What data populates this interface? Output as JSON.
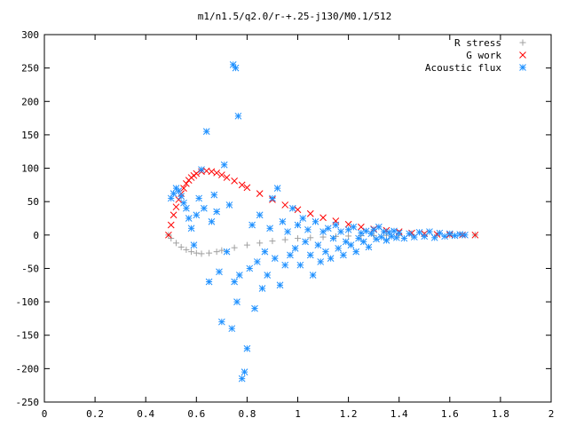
{
  "chart_data": {
    "type": "scatter",
    "title": "m1/n1.5/q2.0/r-+.25-j130/M0.1/512",
    "xlim": [
      0,
      2
    ],
    "ylim": [
      -250,
      300
    ],
    "xticks": [
      "0",
      "0.2",
      "0.4",
      "0.6",
      "0.8",
      "1",
      "1.2",
      "1.4",
      "1.6",
      "1.8",
      "2"
    ],
    "yticks": [
      "-250",
      "-200",
      "-150",
      "-100",
      "-50",
      "0",
      "50",
      "100",
      "150",
      "200",
      "250",
      "300"
    ],
    "legend_position": "top-right",
    "series": [
      {
        "name": "R stress",
        "marker": "plus",
        "color": "#a0a0a0",
        "x": [
          0.49,
          0.5,
          0.52,
          0.54,
          0.56,
          0.58,
          0.6,
          0.62,
          0.65,
          0.68,
          0.7,
          0.75,
          0.8,
          0.85,
          0.9,
          0.95,
          1.0,
          1.05,
          1.1,
          1.15,
          1.2,
          1.25,
          1.3,
          1.35,
          1.4,
          1.45,
          1.5,
          1.55,
          1.6,
          1.65,
          1.7
        ],
        "y": [
          0,
          -5,
          -12,
          -18,
          -22,
          -25,
          -27,
          -28,
          -27,
          -25,
          -23,
          -19,
          -15,
          -12,
          -9,
          -7,
          -5,
          -4,
          -3,
          -2,
          -1.5,
          -1,
          -0.7,
          -0.5,
          -0.3,
          -0.2,
          -0.1,
          0,
          0,
          0,
          0
        ]
      },
      {
        "name": "G work",
        "marker": "cross",
        "color": "#ff0000",
        "x": [
          0.49,
          0.5,
          0.51,
          0.52,
          0.53,
          0.54,
          0.55,
          0.56,
          0.57,
          0.58,
          0.59,
          0.6,
          0.62,
          0.64,
          0.66,
          0.68,
          0.7,
          0.72,
          0.75,
          0.78,
          0.8,
          0.85,
          0.9,
          0.95,
          1.0,
          1.05,
          1.1,
          1.15,
          1.2,
          1.25,
          1.3,
          1.35,
          1.4,
          1.45,
          1.5,
          1.55,
          1.6,
          1.65,
          1.7
        ],
        "y": [
          0,
          15,
          30,
          42,
          53,
          62,
          70,
          77,
          82,
          86,
          89,
          92,
          95,
          96,
          95,
          93,
          90,
          86,
          81,
          75,
          71,
          62,
          53,
          45,
          38,
          32,
          26,
          21,
          16,
          12,
          9,
          7,
          5,
          3,
          2,
          1,
          0.5,
          0.2,
          0
        ]
      },
      {
        "name": "Acoustic flux",
        "marker": "star",
        "color": "#1e90ff",
        "x": [
          0.5,
          0.51,
          0.52,
          0.53,
          0.54,
          0.55,
          0.56,
          0.57,
          0.58,
          0.59,
          0.6,
          0.61,
          0.62,
          0.63,
          0.64,
          0.65,
          0.66,
          0.67,
          0.68,
          0.69,
          0.7,
          0.71,
          0.72,
          0.73,
          0.74,
          0.745,
          0.75,
          0.755,
          0.76,
          0.765,
          0.77,
          0.78,
          0.79,
          0.8,
          0.81,
          0.82,
          0.83,
          0.84,
          0.85,
          0.86,
          0.87,
          0.88,
          0.89,
          0.9,
          0.91,
          0.92,
          0.93,
          0.94,
          0.95,
          0.96,
          0.97,
          0.98,
          0.99,
          1.0,
          1.01,
          1.02,
          1.03,
          1.04,
          1.05,
          1.06,
          1.07,
          1.08,
          1.09,
          1.1,
          1.11,
          1.12,
          1.13,
          1.14,
          1.15,
          1.16,
          1.17,
          1.18,
          1.19,
          1.2,
          1.21,
          1.22,
          1.23,
          1.24,
          1.25,
          1.26,
          1.27,
          1.28,
          1.29,
          1.3,
          1.31,
          1.32,
          1.33,
          1.34,
          1.35,
          1.36,
          1.37,
          1.38,
          1.39,
          1.4,
          1.42,
          1.44,
          1.46,
          1.48,
          1.5,
          1.52,
          1.54,
          1.56,
          1.58,
          1.6,
          1.62,
          1.64,
          1.66
        ],
        "y": [
          55,
          62,
          70,
          66,
          58,
          48,
          40,
          25,
          10,
          -15,
          30,
          55,
          98,
          40,
          155,
          -70,
          20,
          60,
          35,
          -55,
          -130,
          105,
          -25,
          45,
          -140,
          255,
          -70,
          250,
          -100,
          178,
          -60,
          -215,
          -205,
          -170,
          -50,
          15,
          -110,
          -40,
          30,
          -80,
          -25,
          -60,
          10,
          55,
          -35,
          70,
          -75,
          20,
          -45,
          5,
          -30,
          40,
          -20,
          15,
          -45,
          25,
          -10,
          8,
          -30,
          -60,
          20,
          -15,
          -40,
          5,
          -25,
          10,
          -35,
          -5,
          15,
          -20,
          5,
          -30,
          -10,
          8,
          -15,
          12,
          -25,
          -5,
          3,
          -10,
          6,
          -18,
          2,
          8,
          -6,
          12,
          -3,
          5,
          -8,
          4,
          -2,
          6,
          -4,
          3,
          -5,
          2,
          -3,
          4,
          -2,
          5,
          -4,
          3,
          -2,
          2,
          -1,
          1,
          0
        ]
      }
    ]
  }
}
